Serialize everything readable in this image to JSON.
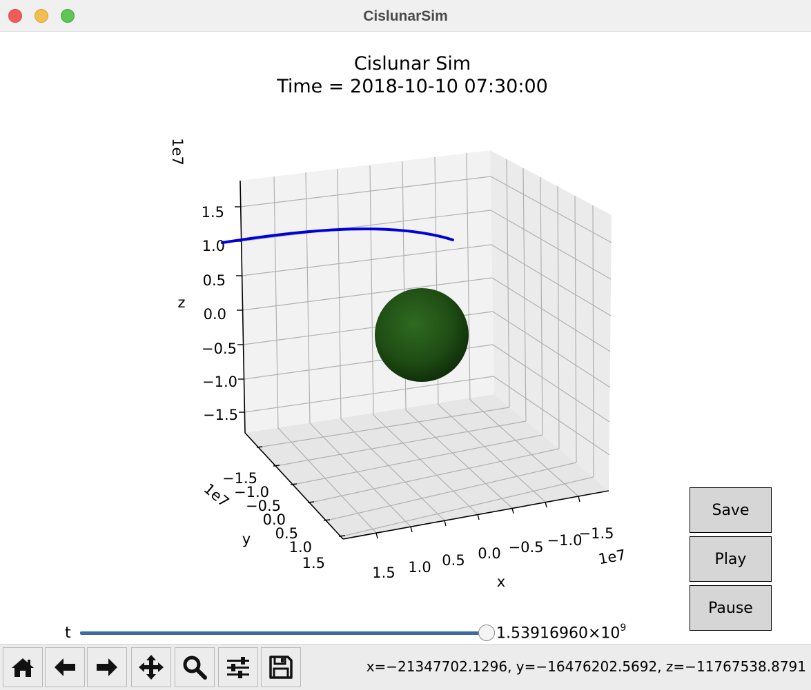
{
  "window": {
    "title": "CislunarSim"
  },
  "plot": {
    "title_line1": "Cislunar Sim",
    "title_line2": "Time = 2018-10-10 07:30:00"
  },
  "chart_data": {
    "type": "3d-line-with-sphere",
    "title": "Cislunar Sim\nTime = 2018-10-10 07:30:00",
    "axes": {
      "x": {
        "label": "x",
        "offset_text": "1e7",
        "ticks": [
          "1.5",
          "1.0",
          "0.5",
          "0.0",
          "−0.5",
          "−1.0",
          "−1.5"
        ]
      },
      "y": {
        "label": "y",
        "offset_text": "1e7",
        "ticks": [
          "−1.5",
          "−1.0",
          "−0.5",
          "0.0",
          "0.5",
          "1.0",
          "1.5"
        ]
      },
      "z": {
        "label": "z",
        "offset_text": "1e7",
        "ticks": [
          "1.5",
          "1.0",
          "0.5",
          "0.0",
          "−0.5",
          "−1.0",
          "−1.5"
        ]
      }
    },
    "grid": true,
    "series": [
      {
        "type": "line",
        "color": "#0000dd"
      },
      {
        "type": "sphere",
        "color": "#1f4d14"
      }
    ]
  },
  "buttons": {
    "save": "Save",
    "play": "Play",
    "pause": "Pause"
  },
  "slider": {
    "label": "t",
    "value_mantissa": "1.53916960×10",
    "value_exponent": "9",
    "fraction": 0.99
  },
  "toolbar": {
    "icons": [
      "home-icon",
      "back-arrow-icon",
      "forward-arrow-icon",
      "pan-icon",
      "zoom-icon",
      "configure-subplots-icon",
      "save-icon"
    ]
  },
  "status": {
    "coords": "x=−21347702.1296, y=−16476202.5692, z=−11767538.8791"
  },
  "colors": {
    "trajectory": "#0000dd",
    "sphere": "#1f4d14",
    "slider": "#3e6aa4",
    "button_bg": "#d6d6d6"
  }
}
